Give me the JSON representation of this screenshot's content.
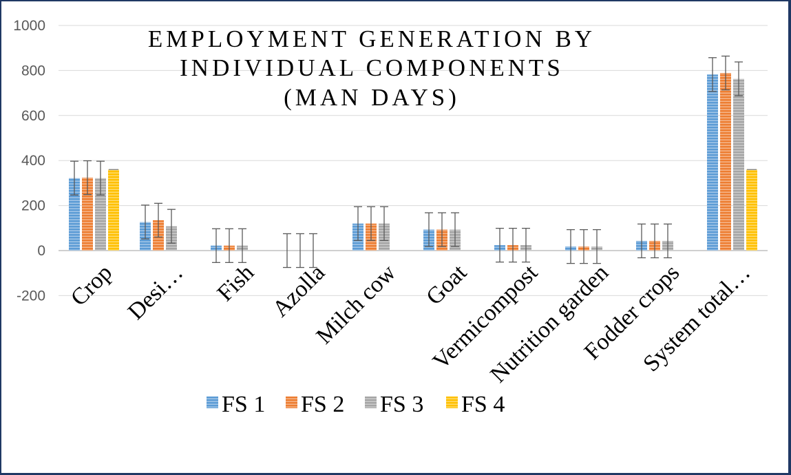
{
  "chart_data": {
    "type": "bar",
    "title_lines": [
      "EMPLOYMENT GENERATION BY",
      "INDIVIDUAL COMPONENTS",
      "(MAN DAYS)"
    ],
    "categories": [
      "Crop",
      "Desi…",
      "Fish",
      "Azolla",
      "Milch cow",
      "Goat",
      "Vermicompost",
      "Nutrition garden",
      "Fodder crops",
      "System total…"
    ],
    "series": [
      {
        "name": "FS 1",
        "color": "#5b9bd5",
        "values": [
          322,
          127,
          22,
          0,
          120,
          93,
          24,
          18,
          43,
          782
        ]
      },
      {
        "name": "FS 2",
        "color": "#ed7d31",
        "values": [
          324,
          135,
          22,
          0,
          120,
          93,
          24,
          18,
          43,
          789
        ]
      },
      {
        "name": "FS 3",
        "color": "#a5a5a5",
        "values": [
          322,
          108,
          22,
          0,
          120,
          93,
          24,
          18,
          43,
          763
        ]
      },
      {
        "name": "FS 4",
        "color": "#ffc000",
        "values": [
          360,
          0,
          0,
          0,
          0,
          0,
          0,
          0,
          0,
          360
        ]
      }
    ],
    "error_bar": 75,
    "y_ticks": [
      "1000",
      "800",
      "600",
      "400",
      "200",
      "0",
      "-200"
    ],
    "ylim": [
      -200,
      1000
    ],
    "xlabel": "",
    "ylabel": "",
    "gridlines": true,
    "legend_position": "bottom"
  }
}
